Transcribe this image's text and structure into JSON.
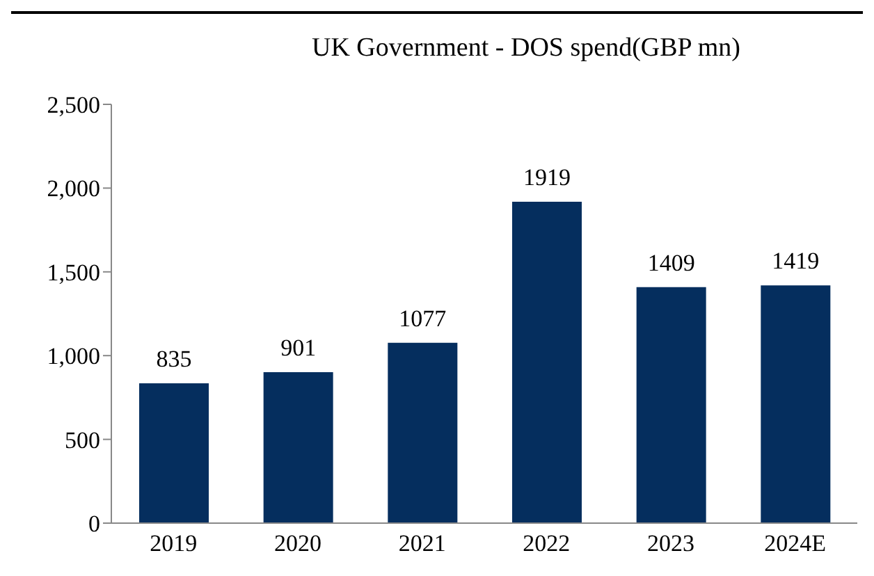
{
  "chart_data": {
    "type": "bar",
    "title": "UK Government - DOS spend(GBP mn)",
    "categories": [
      "2019",
      "2020",
      "2021",
      "2022",
      "2023",
      "2024E"
    ],
    "values": [
      835,
      901,
      1077,
      1919,
      1409,
      1419
    ],
    "color": "#052e5e",
    "ylim": [
      0,
      2500
    ],
    "yticks": [
      {
        "value": 0,
        "label": "0"
      },
      {
        "value": 500,
        "label": "500"
      },
      {
        "value": 1000,
        "label": "1,000"
      },
      {
        "value": 1500,
        "label": "1,500"
      },
      {
        "value": 2000,
        "label": "2,000"
      },
      {
        "value": 2500,
        "label": "2,500"
      }
    ],
    "data_labels": true,
    "grid": false,
    "legend": false
  }
}
